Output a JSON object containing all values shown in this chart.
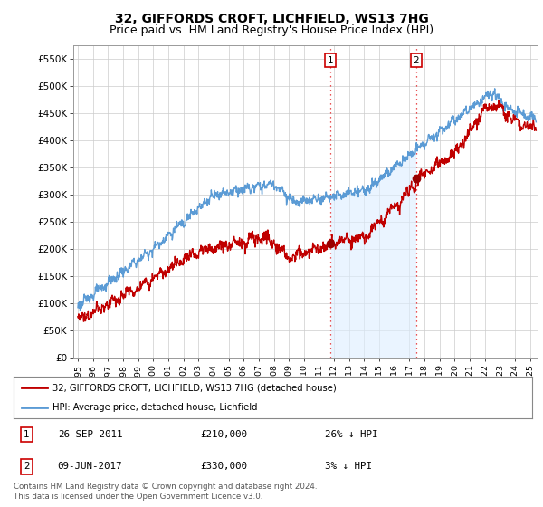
{
  "title": "32, GIFFORDS CROFT, LICHFIELD, WS13 7HG",
  "subtitle": "Price paid vs. HM Land Registry's House Price Index (HPI)",
  "ylabel_ticks": [
    "£0",
    "£50K",
    "£100K",
    "£150K",
    "£200K",
    "£250K",
    "£300K",
    "£350K",
    "£400K",
    "£450K",
    "£500K",
    "£550K"
  ],
  "ylim": [
    0,
    575000
  ],
  "xlim_start": 1994.7,
  "xlim_end": 2025.5,
  "legend_line1": "32, GIFFORDS CROFT, LICHFIELD, WS13 7HG (detached house)",
  "legend_line2": "HPI: Average price, detached house, Lichfield",
  "sale1_date": "26-SEP-2011",
  "sale1_price": 210000,
  "sale1_label": "26% ↓ HPI",
  "sale2_date": "09-JUN-2017",
  "sale2_price": 330000,
  "sale2_label": "3% ↓ HPI",
  "footer": "Contains HM Land Registry data © Crown copyright and database right 2024.\nThis data is licensed under the Open Government Licence v3.0.",
  "hpi_color": "#5b9bd5",
  "hpi_fill_color": "#ddeeff",
  "price_color": "#c00000",
  "sale_marker_color": "#990000",
  "vline_color": "#e31a1c",
  "background_color": "#ffffff",
  "grid_color": "#cccccc",
  "sale1_year": 2011.74,
  "sale2_year": 2017.44,
  "table_box_color": "#cc0000",
  "title_fontsize": 10,
  "subtitle_fontsize": 9
}
